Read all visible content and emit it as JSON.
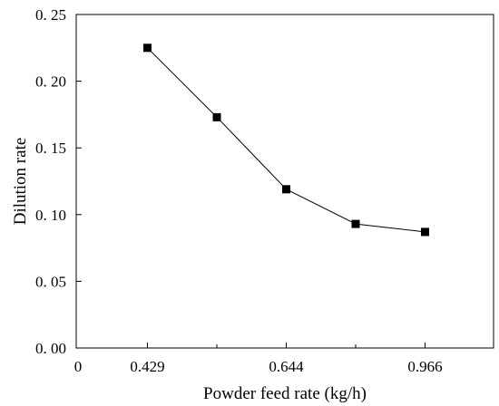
{
  "chart_data": {
    "type": "line",
    "title": "",
    "xlabel": "Powder feed rate (kg/h)",
    "ylabel": "Dilution rate",
    "x_tick_labels": [
      {
        "label": "0",
        "slot": 0
      },
      {
        "label": "0.429",
        "slot": 1
      },
      {
        "label": "0.644",
        "slot": 3
      },
      {
        "label": "0.966",
        "slot": 5
      }
    ],
    "y_ticks": [
      0.0,
      0.05,
      0.1,
      0.15,
      0.2,
      0.25
    ],
    "y_tick_labels": [
      "0. 00",
      "0. 05",
      "0. 10",
      "0. 15",
      "0. 20",
      "0. 25"
    ],
    "ylim": [
      0,
      0.25
    ],
    "x_slot_range": [
      0,
      6
    ],
    "series": [
      {
        "x_slots": [
          1,
          2,
          3,
          4,
          5
        ],
        "values": [
          0.225,
          0.173,
          0.119,
          0.093,
          0.087
        ]
      }
    ],
    "grid": false,
    "legend": "none",
    "marker": "square",
    "line_color": "#000000",
    "marker_color": "#000000"
  }
}
